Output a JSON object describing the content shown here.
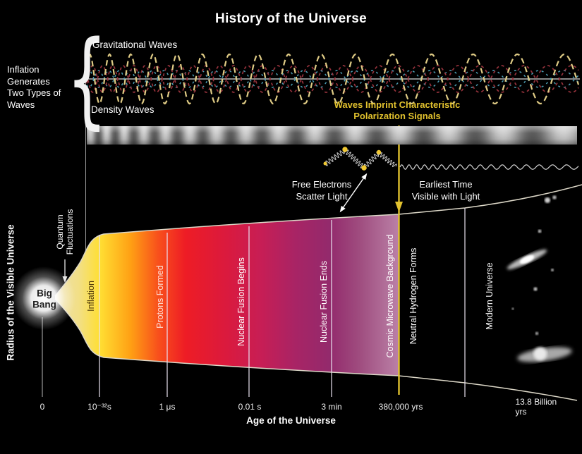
{
  "title": "History of the Universe",
  "waves_panel": {
    "brace_note_lines": [
      "Inflation",
      "Generates",
      "Two Types of",
      "Waves"
    ],
    "gravitational_waves_label": "Gravitational Waves",
    "density_waves_label": "Density Waves",
    "polarization_note_lines": [
      "Waves Imprint Characteristic",
      "Polarization Signals"
    ],
    "free_electrons_note_lines": [
      "Free Electrons",
      "Scatter Light"
    ],
    "earliest_time_note_lines": [
      "Earliest Time",
      "Visible with Light"
    ]
  },
  "universe_plot": {
    "y_axis_label": "Radius of the Visible Universe",
    "big_bang_lines": [
      "Big",
      "Bang"
    ],
    "quantum_fluctuations_lines": [
      "Quantum",
      "Fluctuations"
    ],
    "stages": [
      "Inflation",
      "Protons Formed",
      "Nuclear Fusion Begins",
      "Nuclear Fusion Ends",
      "Cosmic Microwave Background",
      "Neutral Hydrogen Forms",
      "Modern Universe"
    ]
  },
  "x_axis": {
    "title": "Age of the Universe",
    "tick_labels": [
      "0",
      "10⁻³²s",
      "1 μs",
      "0.01 s",
      "3 min",
      "380,000 yrs",
      "13.8 Billion yrs"
    ]
  },
  "colors": {
    "accent_yellow": "#e2c22e",
    "wave_yellow": "#dfcb85",
    "wave_red": "#96323c",
    "wave_blue": "#4e9fb5",
    "funnel_yellow": "#ffdf33",
    "funnel_red": "#ee1c25",
    "funnel_magenta": "#a52468",
    "funnel_mauve": "#ba80a6"
  }
}
